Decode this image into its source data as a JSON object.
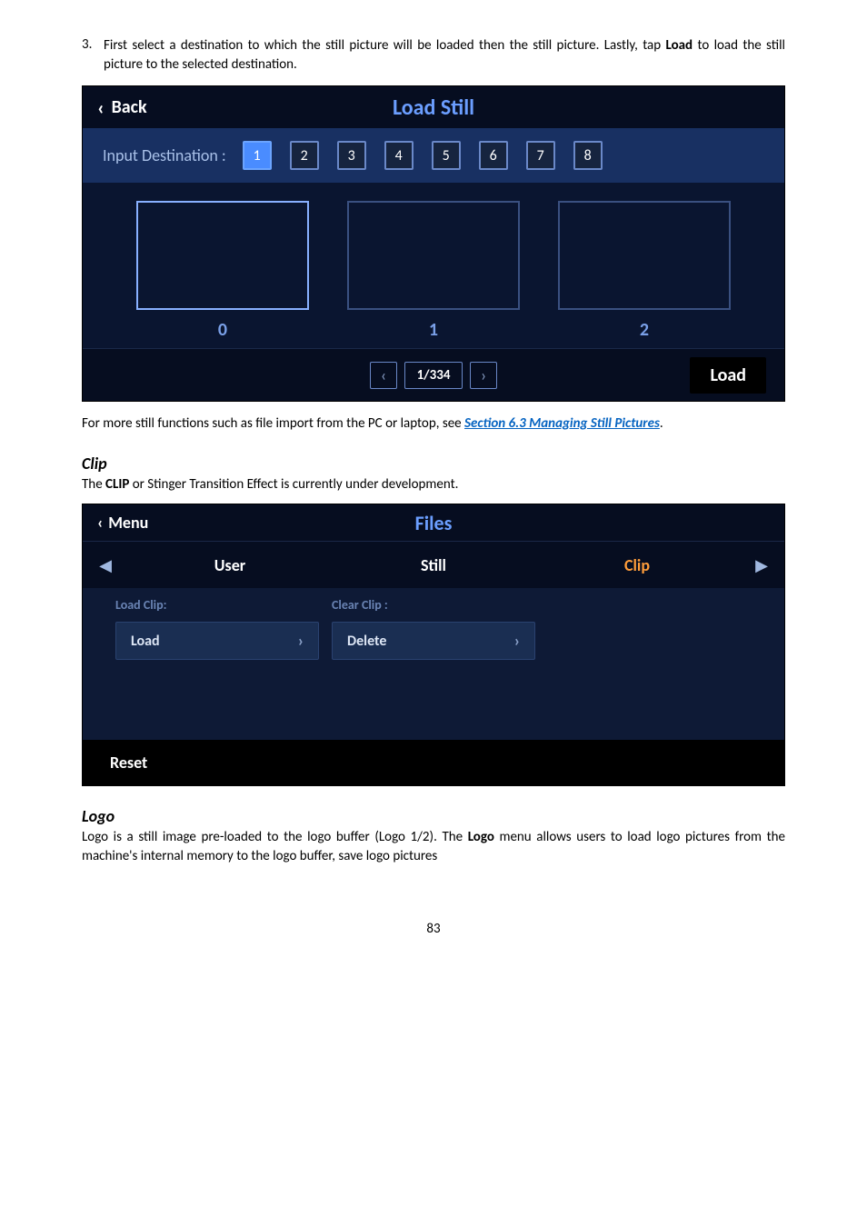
{
  "intro": {
    "num": "3.",
    "text_before": "First select a destination to which the still picture will be loaded then the still picture. Lastly, tap ",
    "bold": "Load",
    "text_after": " to load the still picture to the selected destination."
  },
  "loadstill": {
    "back_label": "Back",
    "title": "Load Still",
    "dest_label": "Input Destination :",
    "buttons": [
      "1",
      "2",
      "3",
      "4",
      "5",
      "6",
      "7",
      "8"
    ],
    "selected": "1",
    "thumbs": [
      {
        "label": "0",
        "selected": true
      },
      {
        "label": "1",
        "selected": false
      },
      {
        "label": "2",
        "selected": false
      }
    ],
    "pager": "1/334",
    "load_label": "Load"
  },
  "after": {
    "text1": "For more still functions such as file import from the PC or laptop, see ",
    "link1": "Section 6.3 Managing Still Pictures",
    "text2": "."
  },
  "clip": {
    "heading": "Clip",
    "line_before": "The ",
    "bold": "CLIP",
    "line_after": " or Stinger Transition Effect is currently under development."
  },
  "files": {
    "back_label": "Menu",
    "title": "Files",
    "tabs": [
      "User",
      "Still",
      "Clip"
    ],
    "active_tab": "Clip",
    "load_label": "Load Clip:",
    "load_btn": "Load",
    "clear_label": "Clear Clip :",
    "clear_btn": "Delete",
    "reset_label": "Reset"
  },
  "logo": {
    "heading": "Logo",
    "line_before": "Logo is a still image pre-loaded to the logo buffer (Logo 1/2). The ",
    "bold": "Logo",
    "line_after": " menu allows users to load logo pictures from the machine's internal memory to the logo buffer, save logo pictures"
  },
  "page_number": "83"
}
